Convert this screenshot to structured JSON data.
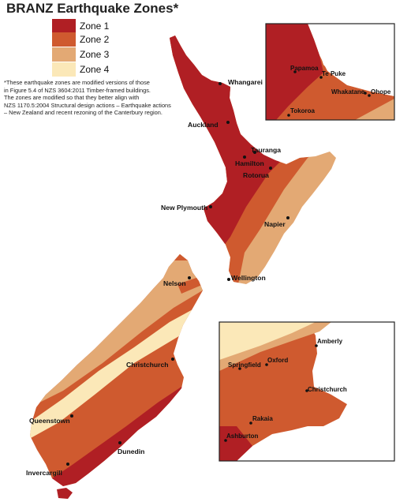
{
  "title": "BRANZ Earthquake Zones*",
  "legend": [
    {
      "label": "Zone 1",
      "color": "#b01f24"
    },
    {
      "label": "Zone 2",
      "color": "#cf5a2f"
    },
    {
      "label": "Zone 3",
      "color": "#e3a974"
    },
    {
      "label": "Zone 4",
      "color": "#fbe8b8"
    }
  ],
  "note": {
    "line1": "*These earthquake zones are modified versions of those",
    "line2": "in Figure 5.4 of NZS 3604:2011 Timber-framed buildings.",
    "line3": "The zones are modified so that they better align with",
    "line4": "NZS 1170.5:2004 Structural design actions – Earthquake actions",
    "line5": "– New Zealand and recent rezoning of the Canterbury region."
  },
  "cities": {
    "whangarei": "Whangarei",
    "auckland": "Auckland",
    "tauranga": "Tauranga",
    "hamilton": "Hamilton",
    "rotorua": "Rotorua",
    "new_plymouth": "New Plymouth",
    "napier": "Napier",
    "wellington": "Wellington",
    "nelson": "Nelson",
    "christchurch": "Christchurch",
    "queenstown": "Queenstown",
    "dunedin": "Dunedin",
    "invercargill": "Invercargill"
  },
  "inset_north": {
    "papamoa": "Papamoa",
    "te_puke": "Te Puke",
    "whakatane": "Whakatane",
    "ohope": "Ohope",
    "tokoroa": "Tokoroa"
  },
  "inset_south": {
    "amberly": "Amberly",
    "springfield": "Springfield",
    "oxford": "Oxford",
    "christchurch": "Christchurch",
    "rakaia": "Rakaia",
    "ashburton": "Ashburton"
  }
}
